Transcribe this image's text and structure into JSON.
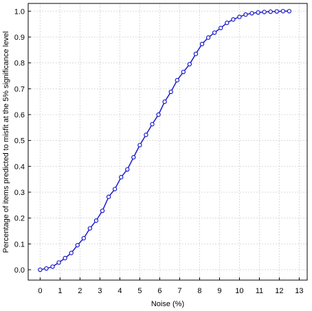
{
  "chart_data": {
    "type": "line",
    "title": "",
    "xlabel": "Noise (%)",
    "ylabel": "Percentage of items predicted to misfit at the 5% significance level",
    "xlim": [
      -0.6,
      13.4
    ],
    "ylim": [
      -0.04,
      1.03
    ],
    "xticks": [
      "0",
      "1",
      "2",
      "3",
      "4",
      "5",
      "6",
      "7",
      "8",
      "9",
      "10",
      "11",
      "12",
      "13"
    ],
    "yticks": [
      "0.0",
      "0.1",
      "0.2",
      "0.3",
      "0.4",
      "0.5",
      "0.6",
      "0.7",
      "0.8",
      "0.9",
      "1.0"
    ],
    "grid": true,
    "colors": {
      "line": "#1a1acc",
      "marker_fill": "#ffffff",
      "grid": "#d8d8d8",
      "axis": "#000000"
    },
    "series": [
      {
        "x": [
          0,
          0.3125,
          0.625,
          0.9375,
          1.25,
          1.5625,
          1.875,
          2.1875,
          2.5,
          2.8125,
          3.125,
          3.4375,
          3.75,
          4.0625,
          4.375,
          4.6875,
          5,
          5.3125,
          5.625,
          5.9375,
          6.25,
          6.5625,
          6.875,
          7.1875,
          7.5,
          7.8125,
          8.125,
          8.4375,
          8.75,
          9.0625,
          9.375,
          9.6875,
          10,
          10.3125,
          10.625,
          10.9375,
          11.25,
          11.5625,
          11.875,
          12.1875,
          12.5
        ],
        "y": [
          0.0,
          0.005,
          0.012,
          0.028,
          0.045,
          0.065,
          0.095,
          0.122,
          0.16,
          0.19,
          0.228,
          0.282,
          0.312,
          0.358,
          0.388,
          0.435,
          0.482,
          0.522,
          0.563,
          0.6,
          0.65,
          0.688,
          0.733,
          0.765,
          0.795,
          0.835,
          0.873,
          0.898,
          0.917,
          0.935,
          0.955,
          0.968,
          0.978,
          0.987,
          0.992,
          0.995,
          0.997,
          0.998,
          0.999,
          1.0,
          1.0
        ]
      }
    ]
  }
}
